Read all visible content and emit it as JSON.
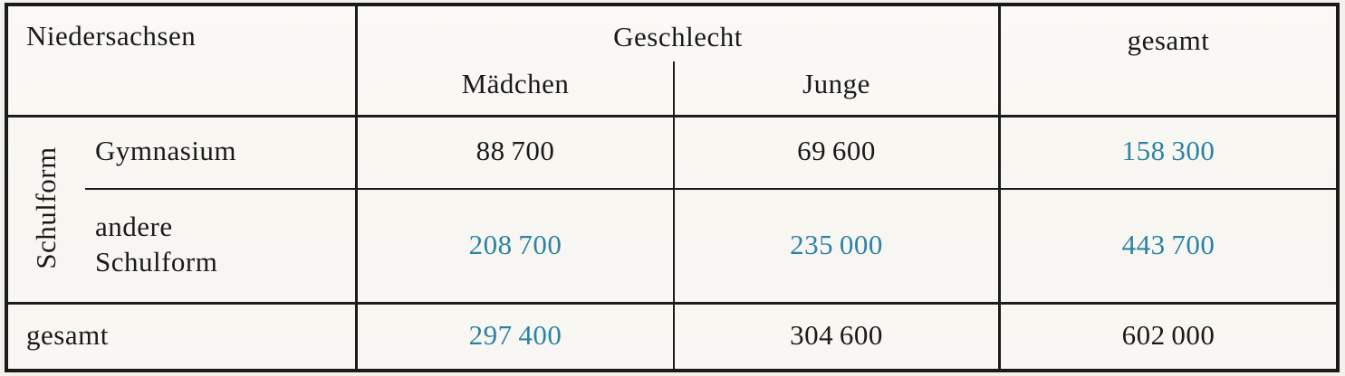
{
  "table": {
    "region_label": "Niedersachsen",
    "column_group_label": "Geschlecht",
    "column_labels": {
      "girls": "Mädchen",
      "boys": "Junge",
      "total": "gesamt"
    },
    "row_group_label": "Schulform",
    "rows": {
      "gymnasium": {
        "label": "Gymnasium",
        "girls": "88 700",
        "boys": "69 600",
        "total": "158 300"
      },
      "other_school": {
        "label_line1": "andere",
        "label_line2": "Schulform",
        "girls": "208 700",
        "boys": "235 000",
        "total": "443 700"
      },
      "totals": {
        "label": "gesamt",
        "girls": "297 400",
        "boys": "304 600",
        "total": "602 000"
      }
    },
    "colors": {
      "accent_blue": "#2c83a6",
      "ink": "#1a1a1a",
      "paper": "#f3f1ec"
    }
  }
}
